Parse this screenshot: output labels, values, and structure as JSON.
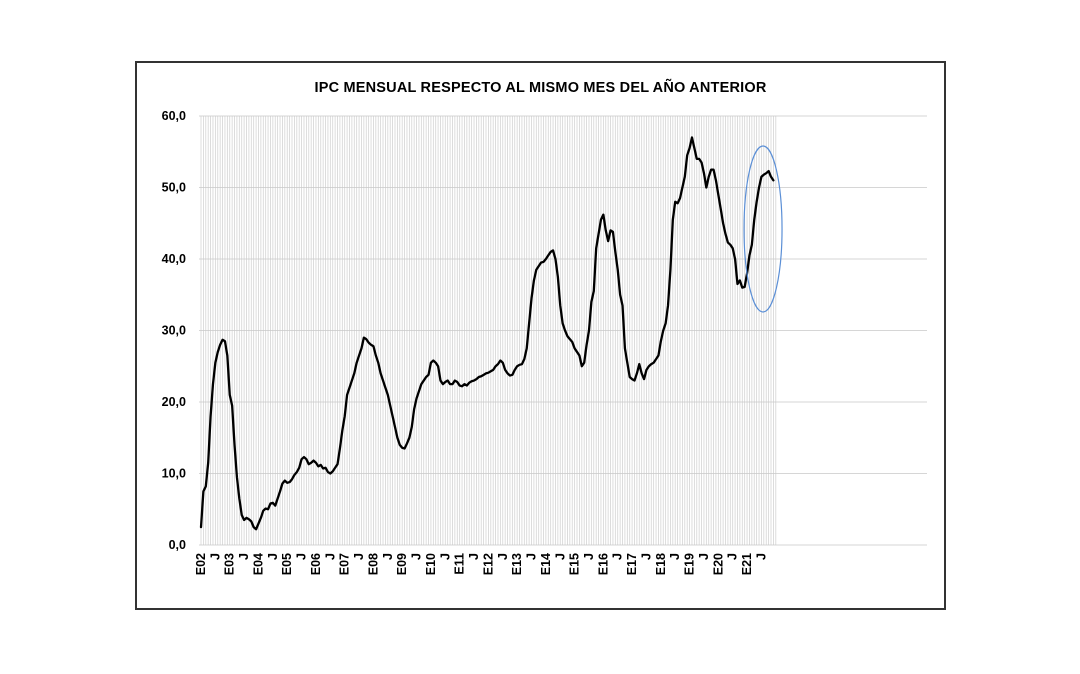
{
  "chart_data": {
    "type": "line",
    "title": "IPC MENSUAL  RESPECTO AL MISMO MES DEL AÑO ANTERIOR",
    "xlabel": "",
    "ylabel": "",
    "ylim": [
      0,
      60
    ],
    "y_ticks": [
      "0,0",
      "10,0",
      "20,0",
      "30,0",
      "40,0",
      "50,0",
      "60,0"
    ],
    "x_ticks": [
      "E02",
      "J",
      "E03",
      "J",
      "E04",
      "J",
      "E05",
      "J",
      "E06",
      "J",
      "E07",
      "J",
      "E08",
      "J",
      "E09",
      "J",
      "E10",
      "J",
      "E11",
      "J",
      "E12",
      "J",
      "E13",
      "J",
      "E14",
      "J",
      "E15",
      "J",
      "E16",
      "J",
      "E17",
      "J",
      "E18",
      "J",
      "E19",
      "J",
      "E20",
      "J",
      "E21",
      "J"
    ],
    "grid": "vertical monthly",
    "highlight_ellipse": {
      "note": "circled last months",
      "color": "#5b8fd6"
    },
    "series": [
      {
        "x": [
          "2002-01",
          "2002-02",
          "2002-03",
          "2002-04",
          "2002-05",
          "2002-06",
          "2002-07",
          "2002-08",
          "2002-09",
          "2002-10",
          "2002-11",
          "2002-12",
          "2003-01",
          "2003-02",
          "2003-03",
          "2003-04",
          "2003-05",
          "2003-06",
          "2003-07",
          "2003-08",
          "2003-09",
          "2003-10",
          "2003-11",
          "2003-12",
          "2004-01",
          "2004-02",
          "2004-03",
          "2004-04",
          "2004-05",
          "2004-06",
          "2004-07",
          "2004-08",
          "2004-09",
          "2004-10",
          "2004-11",
          "2004-12",
          "2005-01",
          "2005-02",
          "2005-03",
          "2005-04",
          "2005-05",
          "2005-06",
          "2005-07",
          "2005-08",
          "2005-09",
          "2005-10",
          "2005-11",
          "2005-12",
          "2006-01",
          "2006-02",
          "2006-03",
          "2006-04",
          "2006-05",
          "2006-06",
          "2006-07",
          "2006-08",
          "2006-09",
          "2006-10",
          "2006-11",
          "2006-12",
          "2007-01",
          "2007-02",
          "2007-03",
          "2007-04",
          "2007-05",
          "2007-06",
          "2007-07",
          "2007-08",
          "2007-09",
          "2007-10",
          "2007-11",
          "2007-12",
          "2008-01",
          "2008-02",
          "2008-03",
          "2008-04",
          "2008-05",
          "2008-06",
          "2008-07",
          "2008-08",
          "2008-09",
          "2008-10",
          "2008-11",
          "2008-12",
          "2009-01",
          "2009-02",
          "2009-03",
          "2009-04",
          "2009-05",
          "2009-06",
          "2009-07",
          "2009-08",
          "2009-09",
          "2009-10",
          "2009-11",
          "2009-12",
          "2010-01",
          "2010-02",
          "2010-03",
          "2010-04",
          "2010-05",
          "2010-06",
          "2010-07",
          "2010-08",
          "2010-09",
          "2010-10",
          "2010-11",
          "2010-12",
          "2011-01",
          "2011-02",
          "2011-03",
          "2011-04",
          "2011-05",
          "2011-06",
          "2011-07",
          "2011-08",
          "2011-09",
          "2011-10",
          "2011-11",
          "2011-12",
          "2012-01",
          "2012-02",
          "2012-03",
          "2012-04",
          "2012-05",
          "2012-06",
          "2012-07",
          "2012-08",
          "2012-09",
          "2012-10",
          "2012-11",
          "2012-12",
          "2013-01",
          "2013-02",
          "2013-03",
          "2013-04",
          "2013-05",
          "2013-06",
          "2013-07",
          "2013-08",
          "2013-09",
          "2013-10",
          "2013-11",
          "2013-12",
          "2014-01",
          "2014-02",
          "2014-03",
          "2014-04",
          "2014-05",
          "2014-06",
          "2014-07",
          "2014-08",
          "2014-09",
          "2014-10",
          "2014-11",
          "2014-12",
          "2015-01",
          "2015-02",
          "2015-03",
          "2015-04",
          "2015-05",
          "2015-06",
          "2015-07",
          "2015-08",
          "2015-09",
          "2015-10",
          "2015-11",
          "2015-12",
          "2016-01",
          "2016-02",
          "2016-03",
          "2016-04",
          "2016-05",
          "2016-06",
          "2016-07",
          "2016-08",
          "2016-09",
          "2016-10",
          "2016-11",
          "2016-12",
          "2017-01",
          "2017-02",
          "2017-03",
          "2017-04",
          "2017-05",
          "2017-06",
          "2017-07",
          "2017-08",
          "2017-09",
          "2017-10",
          "2017-11",
          "2017-12",
          "2018-01",
          "2018-02",
          "2018-03",
          "2018-04",
          "2018-05",
          "2018-06",
          "2018-07",
          "2018-08",
          "2018-09",
          "2018-10",
          "2018-11",
          "2018-12",
          "2019-01",
          "2019-02",
          "2019-03",
          "2019-04",
          "2019-05",
          "2019-06",
          "2019-07",
          "2019-08",
          "2019-09",
          "2019-10",
          "2019-11",
          "2019-12",
          "2020-01",
          "2020-02",
          "2020-03",
          "2020-04",
          "2020-05",
          "2020-06",
          "2020-07",
          "2020-08",
          "2020-09",
          "2020-10",
          "2020-11",
          "2020-12",
          "2021-01",
          "2021-02",
          "2021-03",
          "2021-04",
          "2021-05",
          "2021-06",
          "2021-07",
          "2021-08",
          "2021-09",
          "2021-10",
          "2021-11",
          "2021-12"
        ],
        "values": [
          2.5,
          7.5,
          8.2,
          11.5,
          18.0,
          22.5,
          25.5,
          27.0,
          28.0,
          28.7,
          28.5,
          26.5,
          21.0,
          19.5,
          14.0,
          9.5,
          6.5,
          4.2,
          3.5,
          3.8,
          3.6,
          3.3,
          2.5,
          2.2,
          3.0,
          3.8,
          4.8,
          5.1,
          5.0,
          5.8,
          5.9,
          5.5,
          6.5,
          7.5,
          8.6,
          9.0,
          8.7,
          8.8,
          9.2,
          9.8,
          10.2,
          10.8,
          12.0,
          12.3,
          12.0,
          11.3,
          11.5,
          11.8,
          11.5,
          11.0,
          11.2,
          10.7,
          10.8,
          10.2,
          10.0,
          10.3,
          10.8,
          11.3,
          13.5,
          16.0,
          18.0,
          21.0,
          22.0,
          23.0,
          24.0,
          25.5,
          26.5,
          27.5,
          29.0,
          28.8,
          28.3,
          28.0,
          27.8,
          26.5,
          25.5,
          24.0,
          23.0,
          22.0,
          21.0,
          19.5,
          18.0,
          16.5,
          15.0,
          14.0,
          13.6,
          13.5,
          14.2,
          15.0,
          16.5,
          19.0,
          20.5,
          21.5,
          22.5,
          23.0,
          23.5,
          23.8,
          25.5,
          25.8,
          25.5,
          25.0,
          23.0,
          22.5,
          22.8,
          23.0,
          22.5,
          22.5,
          23.0,
          22.8,
          22.3,
          22.2,
          22.5,
          22.3,
          22.7,
          22.9,
          23.0,
          23.2,
          23.5,
          23.6,
          23.8,
          24.0,
          24.1,
          24.3,
          24.5,
          25.0,
          25.3,
          25.8,
          25.5,
          24.5,
          24.0,
          23.7,
          23.8,
          24.5,
          25.0,
          25.2,
          25.3,
          26.0,
          27.5,
          31.0,
          34.5,
          37.0,
          38.5,
          39.0,
          39.5,
          39.6,
          40.0,
          40.5,
          41.0,
          41.2,
          40.0,
          37.5,
          33.5,
          31.0,
          30.0,
          29.2,
          28.8,
          28.4,
          27.5,
          27.0,
          26.5,
          25.0,
          25.5,
          28.0,
          30.0,
          34.0,
          35.5,
          41.5,
          43.5,
          45.5,
          46.2,
          44.0,
          42.5,
          44.0,
          43.8,
          41.0,
          38.5,
          35.0,
          33.5,
          27.5,
          25.5,
          23.5,
          23.2,
          23.0,
          24.0,
          25.3,
          24.0,
          23.2,
          24.5,
          25.0,
          25.3,
          25.5,
          26.0,
          26.5,
          28.5,
          30.0,
          31.0,
          33.5,
          38.5,
          45.5,
          48.0,
          47.8,
          48.5,
          50.0,
          51.5,
          54.5,
          55.5,
          57.0,
          55.5,
          54.0,
          54.0,
          53.5,
          52.0,
          50.0,
          51.5,
          52.5,
          52.5,
          51.0,
          49.0,
          47.0,
          45.0,
          43.5,
          42.3,
          42.0,
          41.5,
          40.0,
          36.5,
          37.0,
          36.0,
          36.1,
          38.0,
          40.5,
          42.0,
          45.5,
          48.0,
          50.0,
          51.5,
          51.8,
          52.0,
          52.3,
          51.5,
          51.0
        ]
      }
    ]
  }
}
